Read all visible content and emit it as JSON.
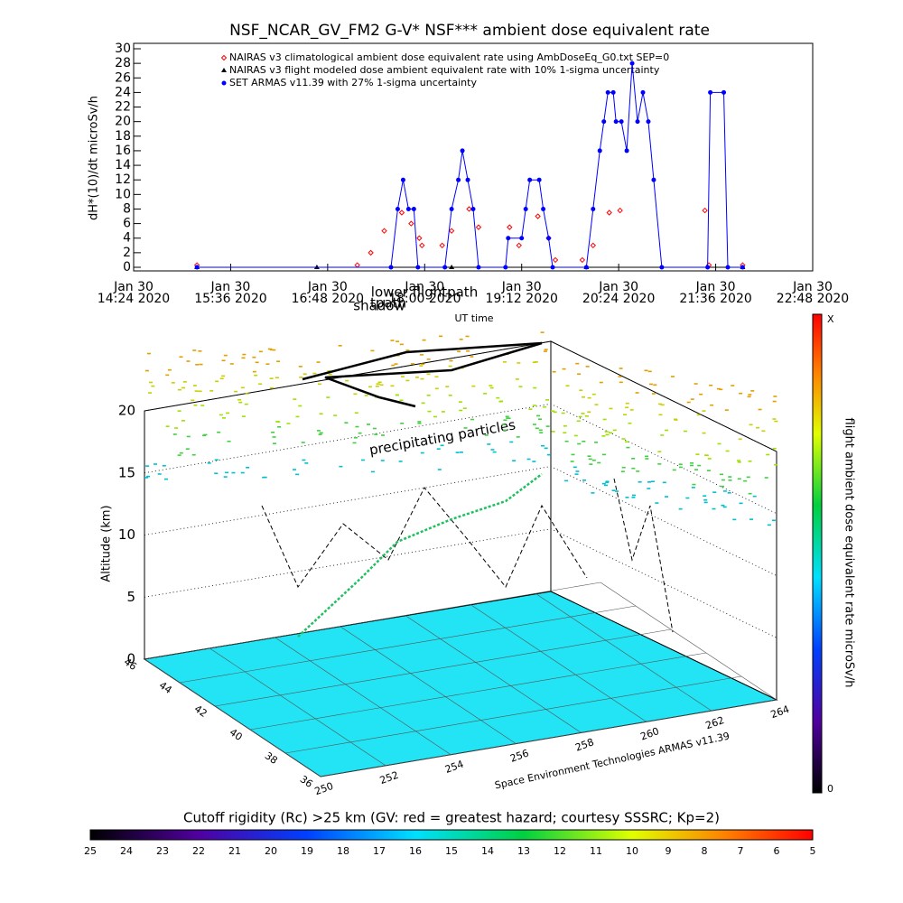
{
  "chart_data": {
    "type": "line",
    "title": "NSF_NCAR_GV_FM2 G-V* NSF*** ambient dose equivalent rate",
    "y_label": "dH*(10)/dt microSv/h",
    "x_label": "UT time",
    "xlim": [
      864,
      1368
    ],
    "xticks": [
      {
        "value": 864,
        "label": [
          "Jan 30",
          "14:24 2020"
        ]
      },
      {
        "value": 936,
        "label": [
          "Jan 30",
          "15:36 2020"
        ]
      },
      {
        "value": 1008,
        "label": [
          "Jan 30",
          "16:48 2020"
        ]
      },
      {
        "value": 1080,
        "label": [
          "Jan 30",
          "18:00 2020"
        ]
      },
      {
        "value": 1152,
        "label": [
          "Jan 30",
          "19:12 2020"
        ]
      },
      {
        "value": 1224,
        "label": [
          "Jan 30",
          "20:24 2020"
        ]
      },
      {
        "value": 1296,
        "label": [
          "Jan 30",
          "21:36 2020"
        ]
      },
      {
        "value": 1368,
        "label": [
          "Jan 30",
          "22:48 2020"
        ]
      }
    ],
    "ylim": [
      0,
      30
    ],
    "yticks": [
      0,
      2,
      4,
      6,
      8,
      10,
      12,
      14,
      16,
      18,
      20,
      22,
      24,
      26,
      28,
      30
    ],
    "series": [
      {
        "name": "NAIRAS v3 climatological ambient dose equivalent rate using AmbDoseEq_G0.txt SEP=0",
        "color": "#ff0000",
        "marker": "diamond",
        "x": [
          911,
          1030,
          1040,
          1050,
          1063,
          1070,
          1076,
          1078,
          1093,
          1100,
          1113,
          1120,
          1143,
          1150,
          1164,
          1172,
          1177,
          1197,
          1205,
          1217,
          1225,
          1288,
          1291,
          1316
        ],
        "values": [
          0.3,
          0.3,
          2,
          5,
          7.5,
          6,
          4,
          3,
          3,
          5,
          8,
          5.5,
          5.5,
          3,
          7,
          4,
          1,
          1,
          3,
          7.5,
          7.8,
          7.8,
          0.3,
          0.3
        ]
      },
      {
        "name": "NAIRAS v3 flight modeled dose ambient equivalent rate with 10% 1-sigma uncertainty",
        "color": "#000000",
        "marker": "triangle",
        "x": [
          911,
          1000,
          1100,
          1200,
          1316
        ],
        "values": [
          0,
          0,
          0,
          0,
          0
        ]
      },
      {
        "name": "SET ARMAS v11.39 with 27% 1-sigma uncertainty",
        "color": "#0000ff",
        "marker": "circle",
        "x": [
          911,
          1055,
          1060,
          1064,
          1068,
          1072,
          1075,
          1095,
          1100,
          1105,
          1108,
          1112,
          1116,
          1120,
          1140,
          1142,
          1152,
          1155,
          1158,
          1165,
          1168,
          1172,
          1175,
          1200,
          1205,
          1210,
          1213,
          1216,
          1220,
          1222,
          1226,
          1230,
          1234,
          1238,
          1242,
          1246,
          1250,
          1256,
          1290,
          1292,
          1302,
          1305,
          1316
        ],
        "values": [
          0,
          0,
          8,
          12,
          8,
          8,
          0,
          0,
          8,
          12,
          16,
          12,
          8,
          0,
          0,
          4,
          4,
          8,
          12,
          12,
          8,
          4,
          0,
          0,
          8,
          16,
          20,
          24,
          24,
          20,
          20,
          16,
          28,
          20,
          24,
          20,
          12,
          0,
          0,
          24,
          24,
          0,
          0
        ]
      }
    ]
  },
  "panel3d": {
    "annotations": [
      "tpath",
      "shadow",
      "lower flightpath",
      "precipitating particles"
    ],
    "z_label": "Altitude (km)",
    "zticks": [
      0,
      5,
      10,
      15,
      20
    ],
    "lat_ticks": [
      36,
      38,
      40,
      42,
      44,
      46
    ],
    "lon_ticks": [
      250,
      252,
      254,
      256,
      258,
      260,
      262,
      264
    ],
    "credit": "Space Environment Technologies ARMAS v11.39"
  },
  "dose_colorbar": {
    "label": "flight ambient dose equivalent rate microSv/h",
    "top": "X",
    "bottom": "0"
  },
  "rigidity_colorbar": {
    "title": "Cutoff rigidity (Rc) >25 km (GV: red = greatest hazard; courtesy SSSRC; Kp=2)",
    "ticks": [
      25,
      24,
      23,
      22,
      21,
      20,
      19,
      18,
      17,
      16,
      15,
      14,
      13,
      12,
      11,
      10,
      9,
      8,
      7,
      6,
      5
    ]
  }
}
